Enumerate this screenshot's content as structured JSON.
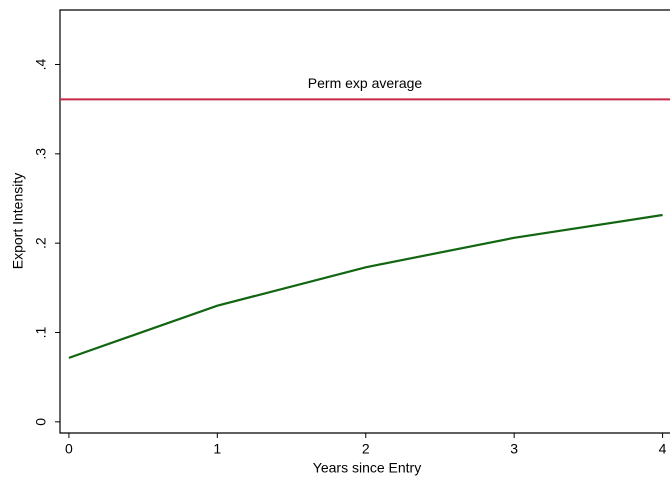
{
  "chart_data": {
    "type": "line",
    "x_label": "Years since Entry",
    "y_label": "Export Intensity",
    "x": [
      0,
      1,
      2,
      3,
      4
    ],
    "series": [
      {
        "color": "#126612",
        "values": [
          0.0716,
          0.13,
          0.173,
          0.206,
          0.2315
        ]
      }
    ],
    "hlines": [
      {
        "value": 0.361,
        "label": "Perm exp average",
        "color": "#c8284a"
      }
    ],
    "xlim": [
      -0.06,
      4.05
    ],
    "ylim": [
      -0.0125,
      0.461
    ],
    "xticks": [
      0,
      1,
      2,
      3,
      4
    ],
    "yticks": [
      0,
      {
        "value": 0.1,
        "label": ".1"
      },
      {
        "value": 0.2,
        "label": ".2"
      },
      {
        "value": 0.3,
        "label": ".3"
      },
      {
        "value": 0.4,
        "label": ".4"
      }
    ],
    "grid": false
  }
}
